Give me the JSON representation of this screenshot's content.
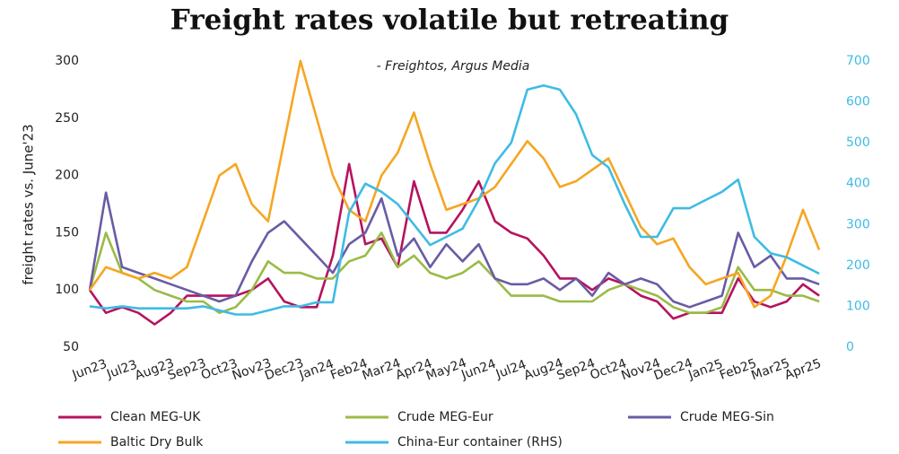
{
  "chart_data": {
    "type": "line",
    "title": "Freight rates volatile but retreating",
    "subtitle": "- Freightos, Argus Media",
    "y_label": "freight rates vs. June'23",
    "categories": [
      "Jun23",
      null,
      "Jul23",
      null,
      "Aug23",
      null,
      "Sep23",
      null,
      "Oct23",
      null,
      "Nov23",
      null,
      "Dec23",
      null,
      "Jan24",
      null,
      "Feb24",
      null,
      "Mar24",
      null,
      "Apr24",
      null,
      "May24",
      null,
      "Jun24",
      null,
      "Jul24",
      null,
      "Aug24",
      null,
      "Sep24",
      null,
      "Oct24",
      null,
      "Nov24",
      null,
      "Dec24",
      null,
      "Jan25",
      null,
      "Feb25",
      null,
      "Mar25",
      null,
      "Apr25",
      null
    ],
    "ylim": [
      50,
      300
    ],
    "yticks": [
      50,
      100,
      150,
      200,
      250,
      300
    ],
    "y2lim": [
      0,
      700
    ],
    "y2ticks": [
      0,
      100,
      200,
      300,
      400,
      500,
      600,
      700
    ],
    "series": [
      {
        "name": "Clean MEG-UK",
        "color": "#b5135e",
        "values": [
          100,
          80,
          85,
          80,
          70,
          80,
          95,
          95,
          95,
          95,
          100,
          110,
          90,
          85,
          85,
          130,
          210,
          140,
          145,
          120,
          195,
          150,
          150,
          170,
          195,
          160,
          150,
          145,
          130,
          110,
          110,
          100,
          110,
          105,
          95,
          90,
          75,
          80,
          80,
          80,
          110,
          90,
          85,
          90,
          105,
          95
        ]
      },
      {
        "name": "Crude MEG-Eur",
        "color": "#9abb46",
        "values": [
          100,
          150,
          115,
          110,
          100,
          95,
          90,
          90,
          80,
          85,
          100,
          125,
          115,
          115,
          110,
          110,
          125,
          130,
          150,
          120,
          130,
          115,
          110,
          115,
          125,
          110,
          95,
          95,
          95,
          90,
          90,
          90,
          100,
          105,
          100,
          95,
          85,
          80,
          80,
          85,
          120,
          100,
          100,
          95,
          95,
          90
        ]
      },
      {
        "name": "Crude MEG-Sin",
        "color": "#6a5ba6",
        "values": [
          100,
          185,
          120,
          115,
          110,
          105,
          100,
          95,
          90,
          95,
          125,
          150,
          160,
          145,
          130,
          115,
          140,
          150,
          180,
          130,
          145,
          120,
          140,
          125,
          140,
          110,
          105,
          105,
          110,
          100,
          110,
          95,
          115,
          105,
          110,
          105,
          90,
          85,
          90,
          95,
          150,
          120,
          130,
          110,
          110,
          105
        ]
      },
      {
        "name": "Baltic Dry Bulk",
        "color": "#f5a623",
        "values": [
          100,
          120,
          115,
          110,
          115,
          110,
          120,
          160,
          200,
          210,
          175,
          160,
          230,
          300,
          250,
          200,
          170,
          160,
          200,
          220,
          255,
          210,
          170,
          175,
          180,
          190,
          210,
          230,
          215,
          190,
          195,
          205,
          215,
          185,
          155,
          140,
          145,
          120,
          105,
          110,
          115,
          85,
          95,
          130,
          170,
          135
        ]
      },
      {
        "name": "China-Eur container (RHS)",
        "color": "#3fbbe4",
        "axis": "y2",
        "values": [
          100,
          95,
          100,
          95,
          95,
          95,
          95,
          100,
          90,
          80,
          80,
          90,
          100,
          100,
          110,
          110,
          330,
          400,
          380,
          350,
          300,
          250,
          270,
          290,
          360,
          450,
          500,
          630,
          640,
          630,
          570,
          470,
          440,
          350,
          270,
          270,
          340,
          340,
          360,
          380,
          410,
          270,
          230,
          220,
          200,
          180
        ]
      }
    ]
  }
}
